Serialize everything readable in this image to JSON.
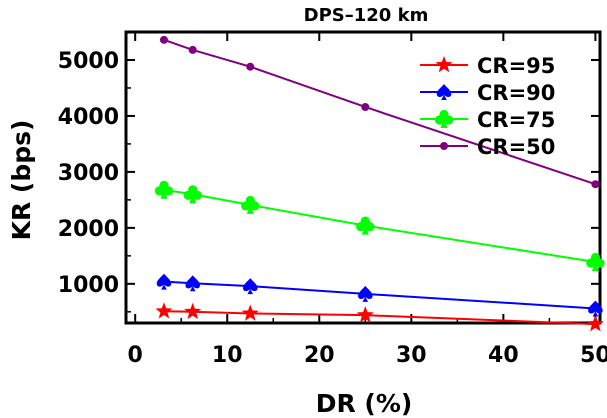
{
  "chart_data": {
    "type": "line",
    "title": "DPS–120 km",
    "xlabel": "DR (%)",
    "ylabel": "KR (bps)",
    "xlim": [
      -1,
      50.5
    ],
    "ylim": [
      300,
      5500
    ],
    "xticks": [
      0,
      10,
      20,
      30,
      40,
      50
    ],
    "yticks": [
      1000,
      2000,
      3000,
      4000,
      5000
    ],
    "x": [
      3.125,
      6.25,
      12.5,
      25,
      50
    ],
    "legend_position": "top-right",
    "series": [
      {
        "name": "CR=95",
        "color": "#ff0000",
        "marker": "star",
        "values": [
          510,
          500,
          470,
          440,
          280
        ]
      },
      {
        "name": "CR=90",
        "color": "#0000ff",
        "marker": "spade",
        "values": [
          1040,
          1010,
          960,
          820,
          560
        ]
      },
      {
        "name": "CR=75",
        "color": "#00ff00",
        "marker": "club",
        "values": [
          2680,
          2600,
          2410,
          2040,
          1390
        ]
      },
      {
        "name": "CR=50",
        "color": "#800080",
        "marker": "circle",
        "values": [
          5360,
          5180,
          4880,
          4160,
          2780
        ]
      }
    ]
  }
}
